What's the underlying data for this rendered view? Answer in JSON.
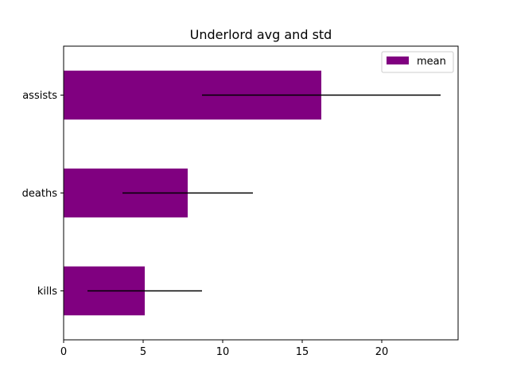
{
  "chart_data": {
    "type": "bar",
    "orientation": "horizontal",
    "title": "Underlord avg and std",
    "xlabel": "",
    "ylabel": "",
    "categories": [
      "kills",
      "deaths",
      "assists"
    ],
    "series": [
      {
        "name": "mean",
        "values": [
          5.1,
          7.8,
          16.2
        ],
        "std": [
          3.6,
          4.1,
          7.5
        ],
        "color": "#800080"
      }
    ],
    "xlim": [
      0,
      24.8
    ],
    "xticks": [
      0,
      5,
      10,
      15,
      20
    ],
    "grid": false,
    "legend": "top-right",
    "error_bar_color": "#000000"
  }
}
